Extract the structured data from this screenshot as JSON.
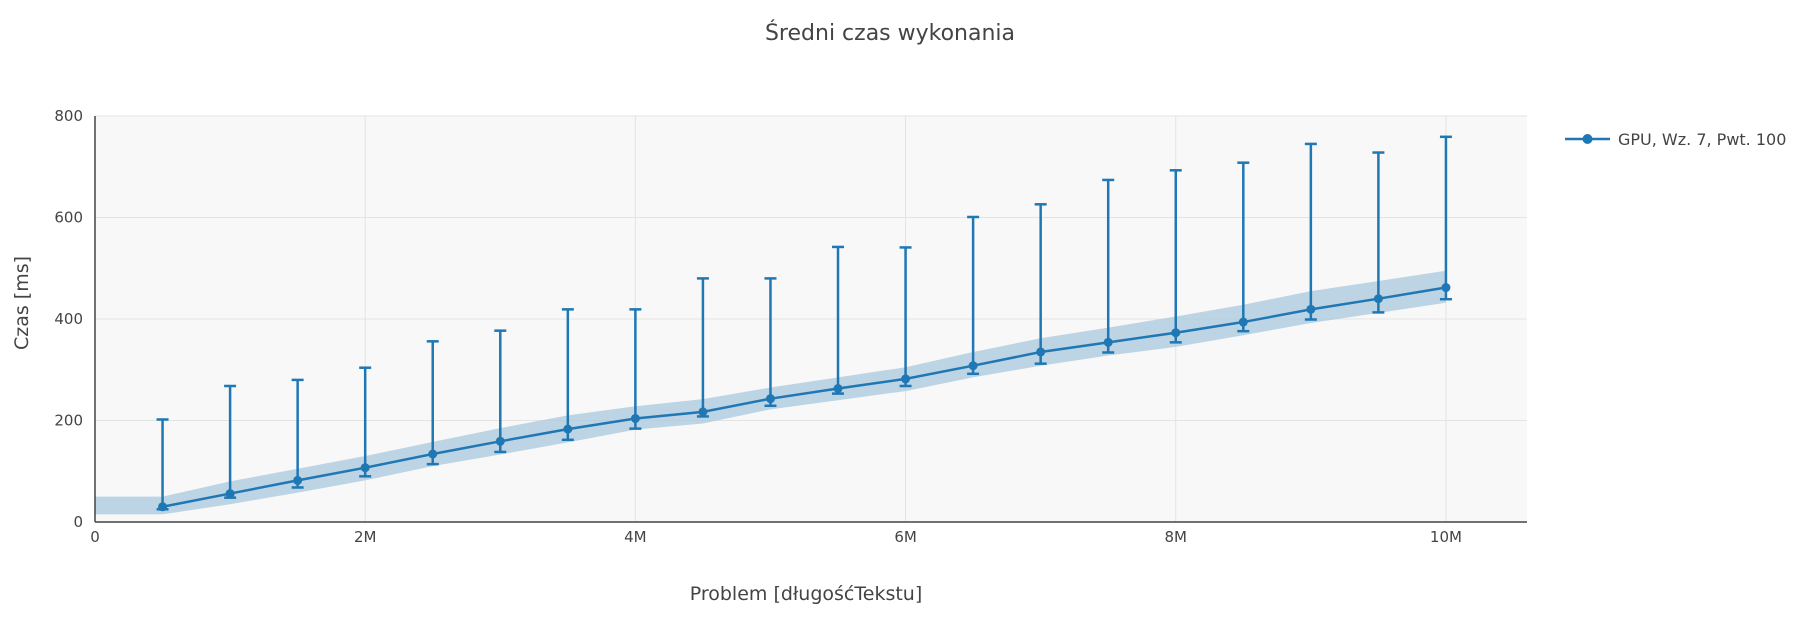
{
  "chart_data": {
    "type": "line",
    "title": "Średni czas wykonania",
    "xlabel": "Problem [długośćTekstu]",
    "ylabel": "Czas [ms]",
    "xlim": [
      0,
      10600000
    ],
    "ylim": [
      0,
      800
    ],
    "x_ticks": [
      0,
      2000000,
      4000000,
      6000000,
      8000000,
      10000000
    ],
    "x_tick_labels": [
      "0",
      "2M",
      "4M",
      "6M",
      "8M",
      "10M"
    ],
    "y_ticks": [
      0,
      200,
      400,
      600,
      800
    ],
    "y_tick_labels": [
      "0",
      "200",
      "400",
      "600",
      "800"
    ],
    "grid": true,
    "legend_position": "top-right",
    "plot_background": "#f8f8f8",
    "series": [
      {
        "name": "GPU, Wz. 7, Pwt. 100",
        "color": "#1f77b4",
        "band_color": "#a9c8df",
        "x": [
          500000,
          1000000,
          1500000,
          2000000,
          2500000,
          3000000,
          3500000,
          4000000,
          4500000,
          5000000,
          5500000,
          6000000,
          6500000,
          7000000,
          7500000,
          8000000,
          8500000,
          9000000,
          9500000,
          10000000
        ],
        "y": [
          30,
          56,
          82,
          107,
          134,
          159,
          183,
          204,
          217,
          243,
          263,
          282,
          308,
          335,
          354,
          373,
          394,
          419,
          440,
          462
        ],
        "error_plus": [
          202,
          268,
          280,
          304,
          356,
          377,
          419,
          419,
          480,
          480,
          542,
          541,
          601,
          626,
          674,
          693,
          708,
          745,
          728,
          759
        ],
        "error_minus": [
          25,
          48,
          68,
          90,
          114,
          138,
          162,
          184,
          208,
          229,
          253,
          268,
          292,
          312,
          334,
          354,
          376,
          399,
          413,
          439
        ],
        "band_x": [
          0,
          500000,
          1000000,
          1500000,
          2000000,
          2500000,
          3000000,
          3500000,
          4000000,
          4500000,
          5000000,
          5500000,
          6000000,
          6500000,
          7000000,
          7500000,
          8000000,
          8500000,
          9000000,
          9500000,
          10000000
        ],
        "band_upper": [
          50,
          50,
          80,
          105,
          130,
          158,
          185,
          210,
          228,
          242,
          265,
          285,
          305,
          335,
          362,
          383,
          405,
          428,
          455,
          475,
          495
        ],
        "band_lower": [
          15,
          15,
          35,
          58,
          82,
          110,
          133,
          157,
          182,
          194,
          222,
          240,
          258,
          285,
          308,
          328,
          345,
          368,
          392,
          412,
          432
        ]
      }
    ]
  }
}
